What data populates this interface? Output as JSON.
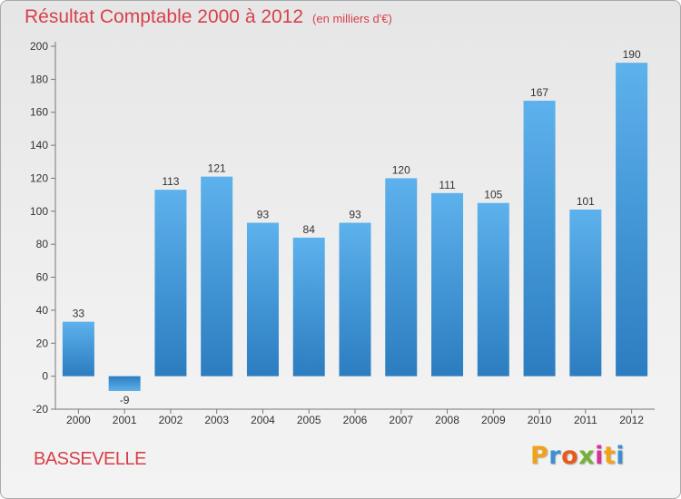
{
  "header": {
    "title": "Résultat Comptable 2000 à 2012",
    "subtitle": "(en milliers d'€)"
  },
  "footer": {
    "location": "BASSEVELLE",
    "brand_letters": [
      "P",
      "r",
      "o",
      "x",
      "i",
      "t",
      "i"
    ],
    "brand_colors": [
      "#f0a21b",
      "#3d8fd0",
      "#e85a1c",
      "#73b23a",
      "#d6329b",
      "#f0a21b",
      "#3d8fd0"
    ]
  },
  "chart_data": {
    "type": "bar",
    "title": "Résultat Comptable 2000 à 2012",
    "subtitle": "(en milliers d'€)",
    "categories": [
      "2000",
      "2001",
      "2002",
      "2003",
      "2004",
      "2005",
      "2006",
      "2007",
      "2008",
      "2009",
      "2010",
      "2011",
      "2012"
    ],
    "values": [
      33,
      -9,
      113,
      121,
      93,
      84,
      93,
      120,
      111,
      105,
      167,
      101,
      190
    ],
    "value_labels": [
      "33",
      "-9",
      "113",
      "121",
      "93",
      "84",
      "93",
      "120",
      "111",
      "105",
      "167",
      "101",
      "190"
    ],
    "yticks": [
      -20,
      0,
      20,
      40,
      60,
      80,
      100,
      120,
      140,
      160,
      180,
      200
    ],
    "ytick_labels": [
      "-20",
      "0",
      "20",
      "40",
      "60",
      "80",
      "100",
      "120",
      "140",
      "160",
      "180",
      "200"
    ],
    "ylim": [
      -20,
      200
    ],
    "grid": false,
    "bar_color": "#3a94d8"
  }
}
